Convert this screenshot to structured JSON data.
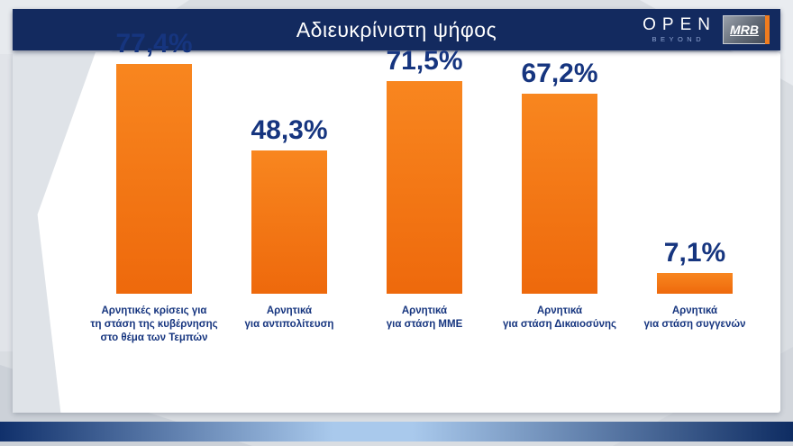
{
  "header": {
    "title": "Αδιευκρίνιστη ψήφος",
    "open": {
      "text": "OPEN",
      "sub": "BEYOND"
    },
    "mrb": "MRB"
  },
  "colors": {
    "header_bg": "#132a5f",
    "navy_text": "#16357f",
    "bar_orange_top": "#f8861f",
    "bar_orange_bottom": "#ee690c",
    "bottom_bar": [
      "#10306b",
      "#a9c9ec",
      "#0e2c62"
    ]
  },
  "chart_data": {
    "type": "bar",
    "title": "Αδιευκρίνιστη ψήφος",
    "orientation": "vertical",
    "grid": false,
    "unit": "%",
    "ylim": [
      0,
      100
    ],
    "categories": [
      "Αρνητικές κρίσεις για\nτη στάση της κυβέρνησης\nστο θέμα των Τεμπών",
      "Αρνητικά\nγια αντιπολίτευση",
      "Αρνητικά\nγια στάση ΜΜΕ",
      "Αρνητικά\nγια στάση Δικαιοσύνης",
      "Αρνητικά\nγια στάση συγγενών"
    ],
    "values": [
      77.4,
      48.3,
      71.5,
      67.2,
      7.1
    ],
    "value_labels": [
      "77,4%",
      "48,3%",
      "71,5%",
      "67,2%",
      "7,1%"
    ]
  }
}
